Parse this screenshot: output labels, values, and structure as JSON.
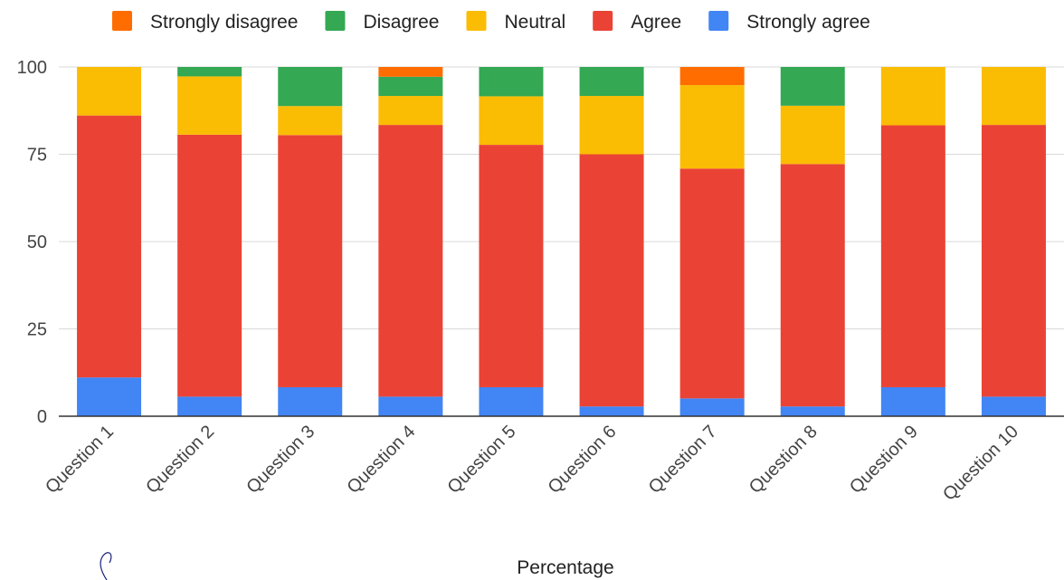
{
  "chart_data": {
    "type": "bar",
    "stacked": true,
    "title": "",
    "xlabel": "Percentage",
    "ylabel": "",
    "ylim": [
      0,
      100
    ],
    "yticks": [
      0,
      25,
      50,
      75,
      100
    ],
    "grid": true,
    "legend_position": "top",
    "categories": [
      "Question 1",
      "Question 2",
      "Question 3",
      "Question 4",
      "Question 5",
      "Question 6",
      "Question 7",
      "Question 8",
      "Question 9",
      "Question 10"
    ],
    "series": [
      {
        "name": "Strongly agree",
        "color": "#4285f4",
        "values": [
          11.1,
          5.6,
          8.3,
          5.6,
          8.3,
          2.8,
          5.1,
          2.8,
          8.3,
          5.6
        ]
      },
      {
        "name": "Agree",
        "color": "#ea4335",
        "values": [
          75.0,
          75.0,
          72.2,
          77.8,
          69.4,
          72.2,
          65.8,
          69.4,
          75.0,
          77.8
        ]
      },
      {
        "name": "Neutral",
        "color": "#fbbc04",
        "values": [
          13.9,
          16.7,
          8.3,
          8.3,
          13.9,
          16.7,
          23.9,
          16.7,
          16.7,
          16.6
        ]
      },
      {
        "name": "Disagree",
        "color": "#34a853",
        "values": [
          0,
          2.7,
          11.2,
          5.5,
          8.4,
          8.3,
          0,
          11.1,
          0,
          0
        ]
      },
      {
        "name": "Strongly disagree",
        "color": "#ff6d01",
        "values": [
          0,
          0,
          0,
          2.8,
          0,
          0,
          5.2,
          0,
          0,
          0
        ]
      }
    ],
    "legend_order": [
      "Strongly disagree",
      "Disagree",
      "Neutral",
      "Agree",
      "Strongly agree"
    ]
  }
}
